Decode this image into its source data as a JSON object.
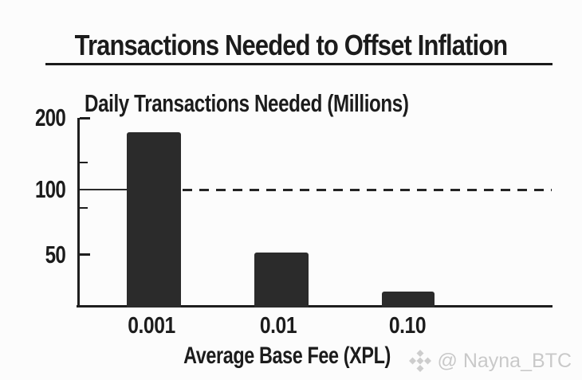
{
  "title": "Transactions Needed to Offset Inflation",
  "chart_data": {
    "type": "bar",
    "title": "Transactions Needed to Offset Inflation",
    "inner_title": "Daily Transactions Needed (Millions)",
    "categories": [
      "0.001",
      "0.01",
      "0.10"
    ],
    "values": [
      180,
      52,
      15
    ],
    "xlabel": "Average Base Fee (XPL)",
    "ylabel": "Daily Transactions Needed (Millions)",
    "y_ticks": [
      "200",
      "100",
      "50"
    ],
    "ylim": [
      0,
      200
    ],
    "reference_line": {
      "value": 100,
      "style": "solid near axis, dashed across plot"
    },
    "grid": false,
    "legend": false,
    "bar_color": "#2b2b2b",
    "axis_color": "#1e1e1e"
  },
  "watermark": {
    "icon": "binance-diamond-icon",
    "text": "@ Nayna_BTC",
    "color": "#c9c9c9"
  }
}
